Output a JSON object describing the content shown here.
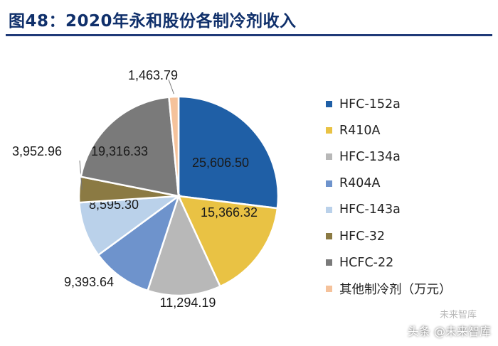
{
  "title": "图48：2020年永和股份各制冷剂收入",
  "watermark": {
    "top": "未来智库",
    "bottom": "头条 @未来智库"
  },
  "chart_data": {
    "type": "pie",
    "title": "图48：2020年永和股份各制冷剂收入",
    "unit_note": "其他制冷剂（万元）",
    "series": [
      {
        "name": "HFC-152a",
        "value": 25606.5,
        "label": "25,606.50",
        "color": "#1f5fa6"
      },
      {
        "name": "R410A",
        "value": 15366.32,
        "label": "15,366.32",
        "color": "#e9c244"
      },
      {
        "name": "HFC-134a",
        "value": 11294.19,
        "label": "11,294.19",
        "color": "#b8b8b8"
      },
      {
        "name": "R404A",
        "value": 9393.64,
        "label": "9,393.64",
        "color": "#6e93cc"
      },
      {
        "name": "HFC-143a",
        "value": 8595.3,
        "label": "8,595.30",
        "color": "#bad1ea"
      },
      {
        "name": "HFC-32",
        "value": 3952.96,
        "label": "3,952.96",
        "color": "#8b7a43"
      },
      {
        "name": "HCFC-22",
        "value": 19316.33,
        "label": "19,316.33",
        "color": "#7a7a7a"
      },
      {
        "name": "其他制冷剂（万元）",
        "value": 1463.79,
        "label": "1,463.79",
        "color": "#f5c29b"
      }
    ]
  }
}
